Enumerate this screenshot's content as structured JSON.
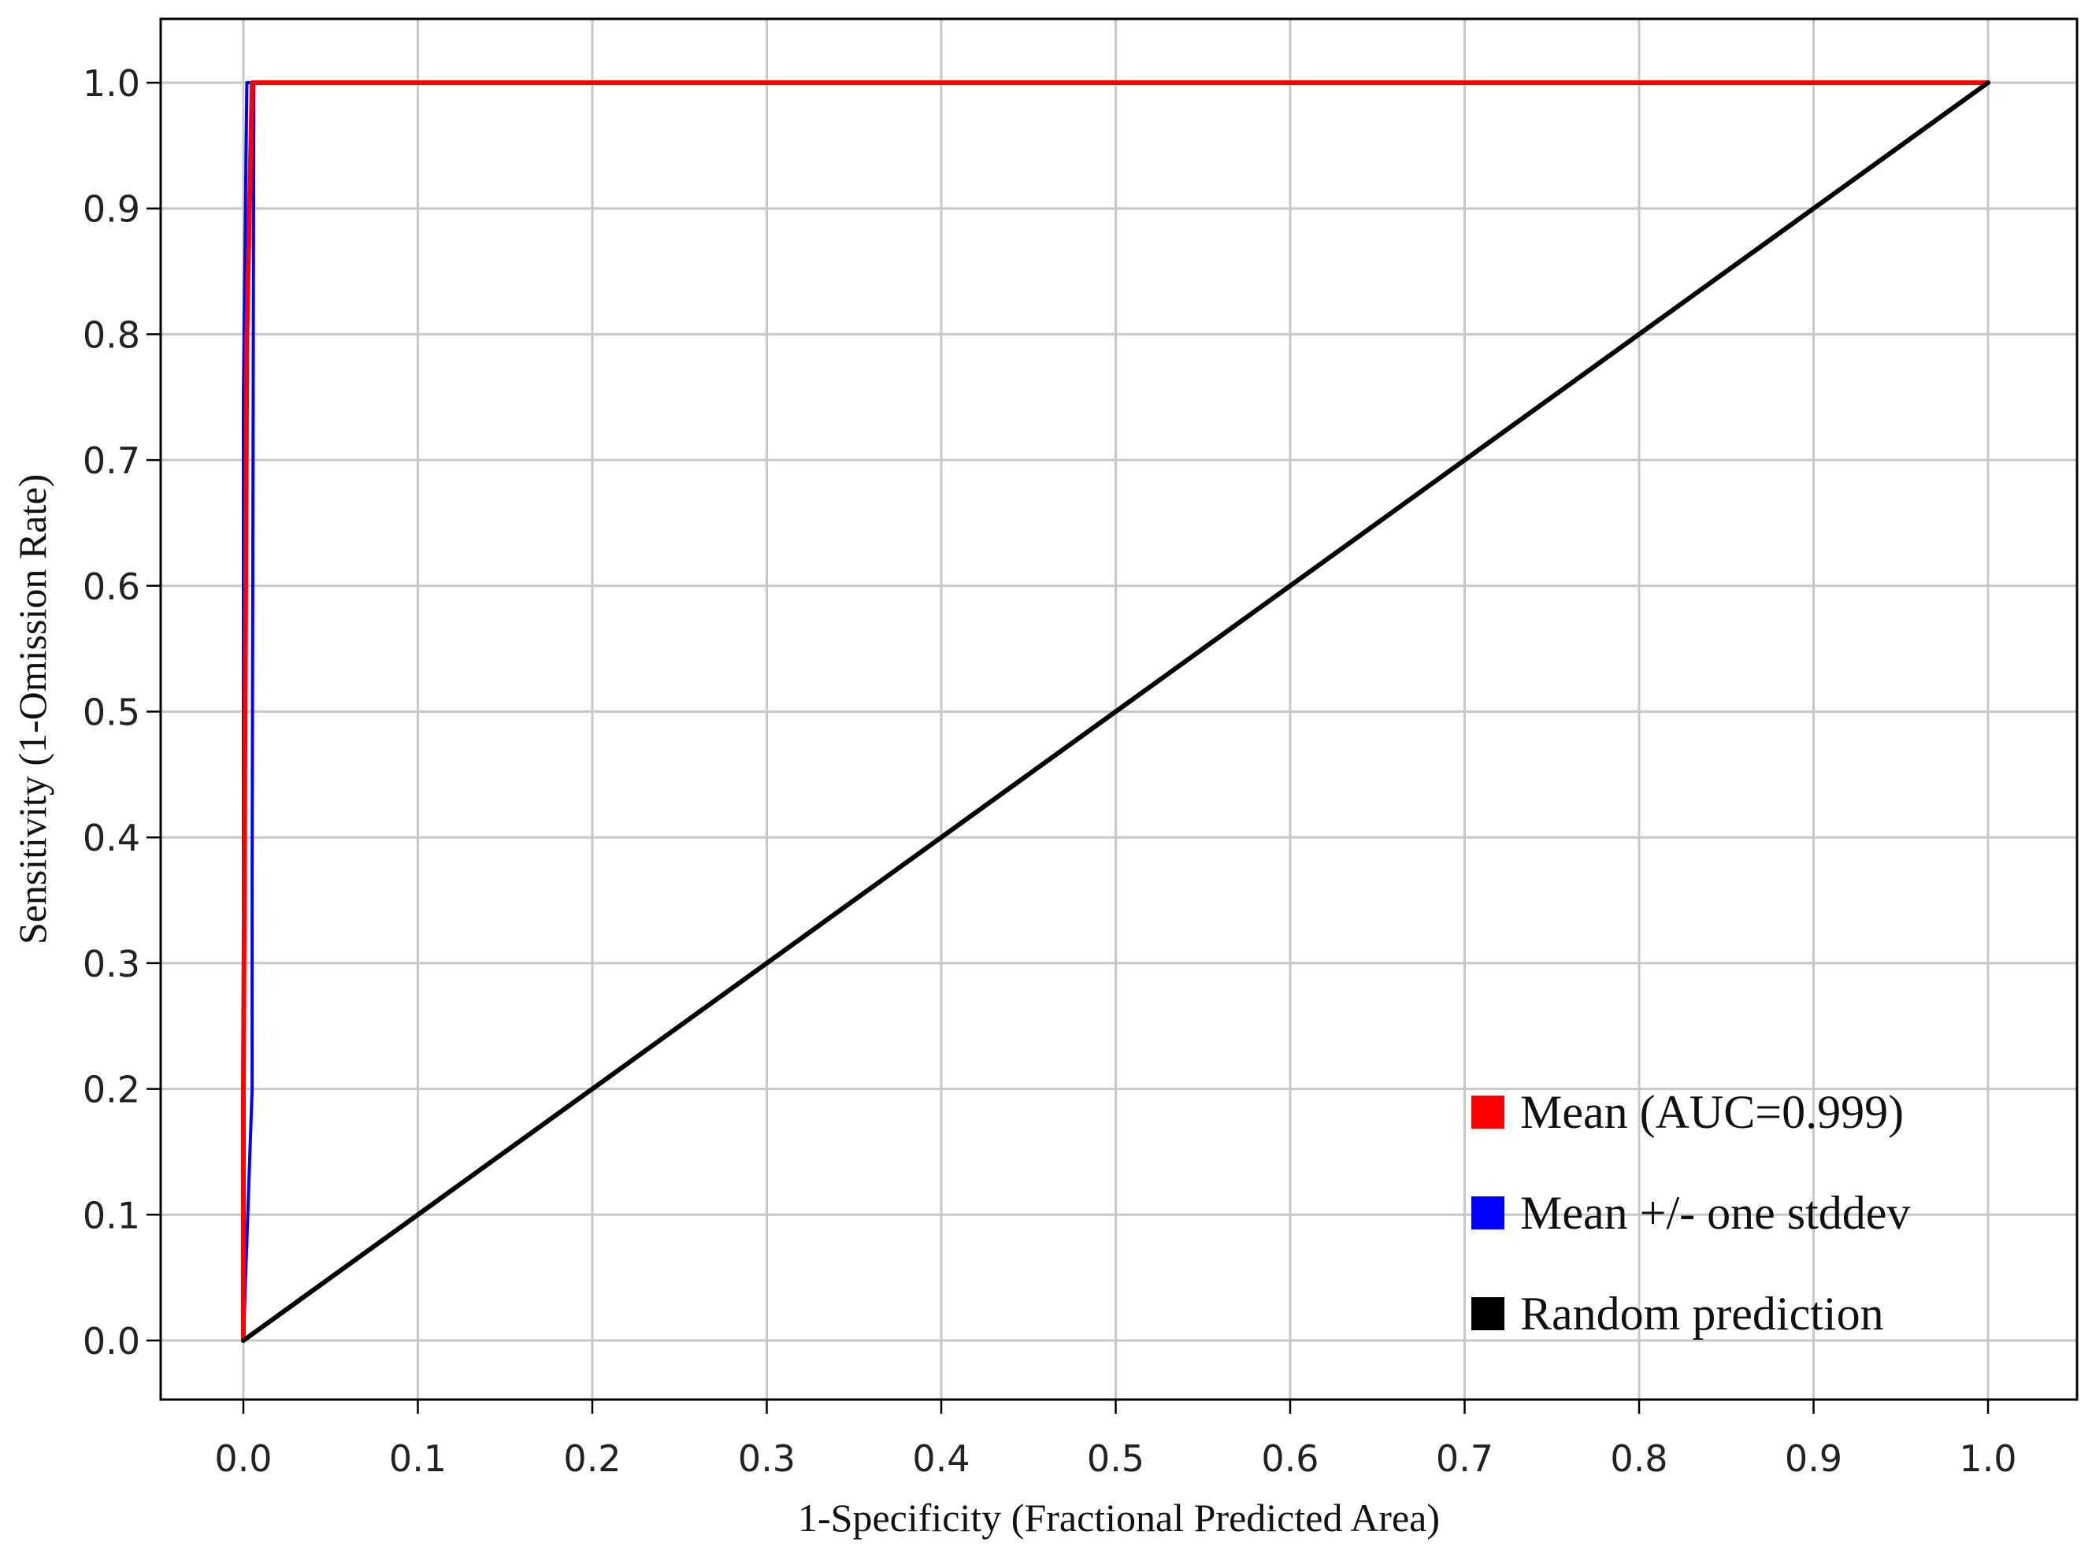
{
  "chart_data": {
    "type": "line",
    "title": "",
    "xlabel": "1-Specificity (Fractional Predicted Area)",
    "ylabel": "Sensitivity (1-Omission Rate)",
    "xlim": [
      0.0,
      1.0
    ],
    "ylim": [
      0.0,
      1.0
    ],
    "x_ticks": [
      "0.0",
      "0.1",
      "0.2",
      "0.3",
      "0.4",
      "0.5",
      "0.6",
      "0.7",
      "0.8",
      "0.9",
      "1.0"
    ],
    "y_ticks": [
      "0.0",
      "0.1",
      "0.2",
      "0.3",
      "0.4",
      "0.5",
      "0.6",
      "0.7",
      "0.8",
      "0.9",
      "1.0"
    ],
    "grid": true,
    "legend_position": "bottom-right",
    "series": [
      {
        "name": "Mean (AUC=0.999)",
        "color": "#ff0000",
        "x": [
          0.0,
          0.0,
          0.002,
          0.005,
          1.0
        ],
        "y": [
          0.0,
          0.2,
          0.8,
          1.0,
          1.0
        ]
      },
      {
        "name": "Mean +/- one stddev",
        "color": "#0000ff",
        "x": [
          0.0,
          0.0,
          0.002,
          1.0
        ],
        "y": [
          0.0,
          0.75,
          1.0,
          1.0
        ]
      },
      {
        "name": "Mean +/- one stddev",
        "color": "#0000ff",
        "x": [
          0.0,
          0.005,
          0.005,
          0.006,
          1.0
        ],
        "y": [
          0.0,
          0.2,
          0.37,
          1.0,
          1.0
        ]
      },
      {
        "name": "Random prediction",
        "color": "#000000",
        "x": [
          0.0,
          1.0
        ],
        "y": [
          0.0,
          1.0
        ]
      }
    ],
    "legend": [
      {
        "label": "Mean (AUC=0.999)",
        "color": "#ff0000"
      },
      {
        "label": "Mean +/- one stddev",
        "color": "#0000ff"
      },
      {
        "label": "Random prediction",
        "color": "#000000"
      }
    ]
  }
}
